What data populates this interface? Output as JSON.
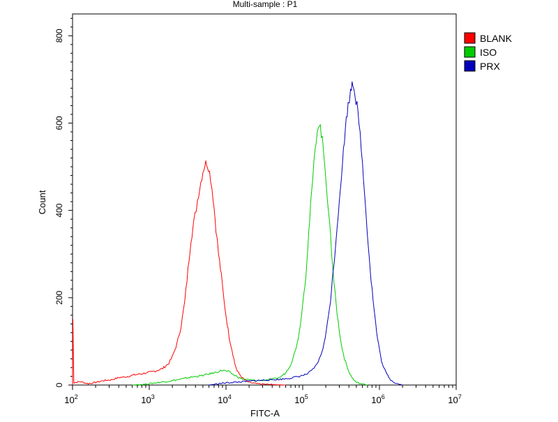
{
  "chart_data": {
    "type": "line",
    "title": "Multi-sample : P1",
    "xlabel": "FITC-A",
    "ylabel": "Count",
    "x_scale": "log",
    "xlim": [
      100,
      10000000
    ],
    "ylim": [
      0,
      850
    ],
    "grid": false,
    "legend_position": "top-right",
    "x_ticks": [
      {
        "value": 100,
        "base": "10",
        "exp": "2"
      },
      {
        "value": 1000,
        "base": "10",
        "exp": "3"
      },
      {
        "value": 10000,
        "base": "10",
        "exp": "4"
      },
      {
        "value": 100000,
        "base": "10",
        "exp": "5"
      },
      {
        "value": 1000000,
        "base": "10",
        "exp": "6"
      },
      {
        "value": 10000000,
        "base": "10",
        "exp": "7"
      }
    ],
    "y_ticks": [
      {
        "value": 0,
        "label": "0"
      },
      {
        "value": 200,
        "label": "200"
      },
      {
        "value": 400,
        "label": "400"
      },
      {
        "value": 600,
        "label": "600"
      },
      {
        "value": 800,
        "label": "800"
      }
    ],
    "series": [
      {
        "name": "BLANK",
        "color": "#ff0000",
        "points": [
          [
            100,
            0
          ],
          [
            101,
            150
          ],
          [
            104,
            5
          ],
          [
            125,
            8
          ],
          [
            160,
            3
          ],
          [
            200,
            6
          ],
          [
            250,
            10
          ],
          [
            320,
            12
          ],
          [
            400,
            17
          ],
          [
            500,
            19
          ],
          [
            630,
            23
          ],
          [
            800,
            26
          ],
          [
            1000,
            29
          ],
          [
            1200,
            32
          ],
          [
            1500,
            38
          ],
          [
            1800,
            50
          ],
          [
            2000,
            65
          ],
          [
            2300,
            95
          ],
          [
            2600,
            135
          ],
          [
            2900,
            190
          ],
          [
            3200,
            265
          ],
          [
            3500,
            335
          ],
          [
            3800,
            370
          ],
          [
            4100,
            405
          ],
          [
            4400,
            440
          ],
          [
            4700,
            465
          ],
          [
            5000,
            490
          ],
          [
            5300,
            505
          ],
          [
            5600,
            510
          ],
          [
            5900,
            500
          ],
          [
            6300,
            475
          ],
          [
            6800,
            430
          ],
          [
            7400,
            360
          ],
          [
            8000,
            300
          ],
          [
            8700,
            250
          ],
          [
            9400,
            195
          ],
          [
            10000,
            160
          ],
          [
            11000,
            110
          ],
          [
            12000,
            80
          ],
          [
            13000,
            50
          ],
          [
            14000,
            32
          ],
          [
            16000,
            18
          ],
          [
            18000,
            10
          ],
          [
            20000,
            6
          ],
          [
            25000,
            3
          ],
          [
            30000,
            2
          ],
          [
            40000,
            1
          ],
          [
            60000,
            0
          ]
        ]
      },
      {
        "name": "ISO",
        "color": "#00cc00",
        "points": [
          [
            600,
            0
          ],
          [
            900,
            2
          ],
          [
            1200,
            5
          ],
          [
            1800,
            9
          ],
          [
            2500,
            13
          ],
          [
            3500,
            18
          ],
          [
            5000,
            22
          ],
          [
            7000,
            28
          ],
          [
            9000,
            34
          ],
          [
            11000,
            30
          ],
          [
            13000,
            22
          ],
          [
            16000,
            14
          ],
          [
            20000,
            12
          ],
          [
            25000,
            10
          ],
          [
            30000,
            11
          ],
          [
            40000,
            13
          ],
          [
            50000,
            17
          ],
          [
            60000,
            28
          ],
          [
            70000,
            48
          ],
          [
            80000,
            78
          ],
          [
            90000,
            120
          ],
          [
            100000,
            185
          ],
          [
            110000,
            255
          ],
          [
            120000,
            350
          ],
          [
            130000,
            435
          ],
          [
            140000,
            505
          ],
          [
            150000,
            565
          ],
          [
            160000,
            600
          ],
          [
            170000,
            590
          ],
          [
            180000,
            560
          ],
          [
            195000,
            505
          ],
          [
            210000,
            430
          ],
          [
            230000,
            340
          ],
          [
            255000,
            240
          ],
          [
            280000,
            165
          ],
          [
            310000,
            105
          ],
          [
            350000,
            60
          ],
          [
            400000,
            30
          ],
          [
            450000,
            14
          ],
          [
            500000,
            6
          ],
          [
            600000,
            2
          ],
          [
            700000,
            0
          ]
        ]
      },
      {
        "name": "PRX",
        "color": "#0000bb",
        "points": [
          [
            6000,
            0
          ],
          [
            8000,
            3
          ],
          [
            10000,
            5
          ],
          [
            15000,
            7
          ],
          [
            20000,
            9
          ],
          [
            30000,
            11
          ],
          [
            50000,
            13
          ],
          [
            70000,
            16
          ],
          [
            90000,
            20
          ],
          [
            110000,
            24
          ],
          [
            130000,
            32
          ],
          [
            150000,
            45
          ],
          [
            170000,
            65
          ],
          [
            190000,
            95
          ],
          [
            210000,
            140
          ],
          [
            230000,
            195
          ],
          [
            250000,
            260
          ],
          [
            270000,
            330
          ],
          [
            290000,
            395
          ],
          [
            310000,
            455
          ],
          [
            330000,
            510
          ],
          [
            350000,
            560
          ],
          [
            370000,
            610
          ],
          [
            390000,
            640
          ],
          [
            420000,
            670
          ],
          [
            440000,
            695
          ],
          [
            460000,
            690
          ],
          [
            480000,
            665
          ],
          [
            510000,
            640
          ],
          [
            540000,
            600
          ],
          [
            580000,
            545
          ],
          [
            620000,
            470
          ],
          [
            670000,
            395
          ],
          [
            720000,
            315
          ],
          [
            780000,
            240
          ],
          [
            850000,
            175
          ],
          [
            920000,
            120
          ],
          [
            1000000,
            80
          ],
          [
            1100000,
            45
          ],
          [
            1250000,
            25
          ],
          [
            1400000,
            12
          ],
          [
            1600000,
            5
          ],
          [
            1800000,
            2
          ],
          [
            2000000,
            0
          ]
        ]
      }
    ]
  }
}
